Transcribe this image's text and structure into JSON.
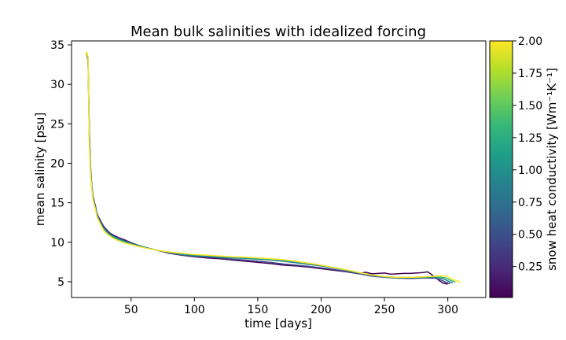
{
  "chart_data": {
    "type": "line",
    "title": "Mean bulk salinities with idealized forcing",
    "xlabel": "time [days]",
    "ylabel": "mean salinity [psu]",
    "xlim": [
      3,
      330
    ],
    "ylim": [
      3.0,
      35.5
    ],
    "x_ticks": [
      50,
      100,
      150,
      200,
      250,
      300
    ],
    "y_ticks": [
      5,
      10,
      15,
      20,
      25,
      30,
      35
    ],
    "grid": false,
    "colorbar": {
      "label": "snow heat conductivity [Wm⁻¹K⁻¹]",
      "range": [
        0.01,
        2.0
      ],
      "ticks": [
        0.25,
        0.5,
        0.75,
        1.0,
        1.25,
        1.5,
        1.75,
        2.0
      ],
      "tick_labels": [
        "0.25",
        "0.50",
        "0.75",
        "1.00",
        "1.25",
        "1.50",
        "1.75",
        "2.00"
      ],
      "colormap": "viridis",
      "colors": [
        "#440154",
        "#482878",
        "#3e4989",
        "#31688e",
        "#26828e",
        "#1f9e89",
        "#35b779",
        "#6ece58",
        "#b5de2b",
        "#fde725"
      ]
    },
    "series": [
      {
        "conductivity": 0.1,
        "color": "#440154",
        "x": [
          15,
          16,
          17,
          18,
          19,
          20,
          21,
          22,
          23,
          24,
          26,
          28,
          30,
          33,
          36,
          40,
          45,
          50,
          55,
          60,
          70,
          80,
          90,
          100,
          110,
          120,
          130,
          140,
          150,
          160,
          170,
          180,
          190,
          200,
          210,
          220,
          230,
          235,
          240,
          245,
          250,
          255,
          260,
          265,
          270,
          275,
          280,
          284,
          286,
          288,
          290,
          292,
          294,
          296,
          298,
          300
        ],
        "y": [
          33.9,
          33.0,
          24.5,
          19.5,
          17.2,
          15.8,
          15.1,
          14.5,
          13.7,
          13.3,
          12.7,
          12.1,
          11.7,
          11.2,
          10.9,
          10.6,
          10.3,
          9.95,
          9.65,
          9.4,
          9.0,
          8.6,
          8.35,
          8.15,
          8.0,
          7.9,
          7.75,
          7.6,
          7.45,
          7.3,
          7.1,
          7.0,
          6.85,
          6.65,
          6.45,
          6.25,
          6.0,
          6.2,
          6.0,
          6.05,
          6.1,
          5.95,
          6.0,
          6.05,
          6.05,
          6.1,
          6.15,
          6.25,
          6.05,
          5.8,
          5.55,
          5.3,
          5.05,
          4.85,
          4.75,
          4.7
        ]
      },
      {
        "conductivity": 0.5,
        "color": "#3e4989",
        "x": [
          15,
          16,
          17,
          18,
          19,
          20,
          21,
          22,
          23,
          24,
          26,
          28,
          30,
          33,
          36,
          40,
          45,
          50,
          55,
          60,
          70,
          80,
          90,
          100,
          110,
          120,
          130,
          140,
          150,
          160,
          170,
          180,
          190,
          200,
          210,
          220,
          230,
          240,
          250,
          260,
          270,
          280,
          290,
          295,
          298,
          302
        ],
        "y": [
          33.9,
          33.1,
          24.0,
          19.2,
          17.0,
          15.6,
          15.0,
          14.4,
          13.6,
          13.2,
          12.6,
          12.0,
          11.6,
          11.1,
          10.8,
          10.5,
          10.2,
          9.9,
          9.6,
          9.4,
          9.0,
          8.65,
          8.4,
          8.2,
          8.1,
          8.0,
          7.85,
          7.75,
          7.6,
          7.45,
          7.25,
          7.1,
          6.95,
          6.75,
          6.55,
          6.3,
          6.0,
          5.7,
          5.55,
          5.45,
          5.4,
          5.45,
          5.45,
          5.2,
          4.95,
          4.75
        ]
      },
      {
        "conductivity": 1.0,
        "color": "#26828e",
        "x": [
          15,
          16,
          17,
          18,
          19,
          20,
          21,
          22,
          23,
          24,
          26,
          28,
          30,
          33,
          36,
          40,
          45,
          50,
          55,
          60,
          70,
          80,
          90,
          100,
          110,
          120,
          130,
          140,
          150,
          160,
          170,
          180,
          190,
          200,
          210,
          220,
          230,
          240,
          250,
          260,
          270,
          280,
          290,
          296,
          300,
          304
        ],
        "y": [
          33.9,
          33.3,
          23.5,
          19.0,
          16.9,
          15.5,
          14.9,
          14.3,
          13.5,
          13.1,
          12.4,
          11.85,
          11.45,
          11.0,
          10.7,
          10.4,
          10.1,
          9.85,
          9.6,
          9.4,
          9.0,
          8.7,
          8.45,
          8.3,
          8.2,
          8.1,
          8.0,
          7.95,
          7.85,
          7.75,
          7.6,
          7.4,
          7.2,
          7.0,
          6.75,
          6.45,
          6.1,
          5.8,
          5.6,
          5.5,
          5.5,
          5.5,
          5.6,
          5.4,
          5.1,
          4.85
        ]
      },
      {
        "conductivity": 1.5,
        "color": "#35b779",
        "x": [
          15,
          16,
          17,
          18,
          19,
          20,
          21,
          22,
          23,
          24,
          26,
          28,
          30,
          33,
          36,
          40,
          45,
          50,
          55,
          60,
          70,
          80,
          90,
          100,
          110,
          120,
          130,
          140,
          150,
          160,
          170,
          180,
          190,
          200,
          210,
          220,
          230,
          240,
          250,
          260,
          270,
          280,
          290,
          298,
          302,
          306
        ],
        "y": [
          33.9,
          33.4,
          23.0,
          18.8,
          16.8,
          15.4,
          14.8,
          14.2,
          13.4,
          13.0,
          12.3,
          11.7,
          11.3,
          10.9,
          10.6,
          10.3,
          10.0,
          9.75,
          9.55,
          9.35,
          9.0,
          8.75,
          8.55,
          8.4,
          8.3,
          8.2,
          8.1,
          8.05,
          7.95,
          7.85,
          7.75,
          7.55,
          7.35,
          7.1,
          6.8,
          6.5,
          6.15,
          5.85,
          5.65,
          5.55,
          5.55,
          5.6,
          5.65,
          5.5,
          5.2,
          4.95
        ]
      },
      {
        "conductivity": 2.0,
        "color": "#fde725",
        "x": [
          14,
          15,
          16,
          17,
          18,
          19,
          20,
          21,
          22,
          23,
          24,
          26,
          28,
          30,
          33,
          36,
          40,
          45,
          50,
          55,
          60,
          70,
          80,
          90,
          100,
          110,
          120,
          130,
          140,
          150,
          160,
          170,
          180,
          190,
          200,
          210,
          220,
          230,
          240,
          250,
          260,
          270,
          280,
          290,
          298,
          302,
          306,
          310
        ],
        "y": [
          33.8,
          34.1,
          33.5,
          22.5,
          18.6,
          16.7,
          15.3,
          14.7,
          14.1,
          13.3,
          12.9,
          12.2,
          11.6,
          11.2,
          10.8,
          10.5,
          10.2,
          9.9,
          9.7,
          9.5,
          9.3,
          9.0,
          8.75,
          8.6,
          8.45,
          8.35,
          8.25,
          8.15,
          8.1,
          8.0,
          7.9,
          7.8,
          7.6,
          7.35,
          7.1,
          6.8,
          6.5,
          6.15,
          5.85,
          5.65,
          5.55,
          5.55,
          5.6,
          5.7,
          5.75,
          5.45,
          5.15,
          4.95
        ]
      }
    ]
  }
}
